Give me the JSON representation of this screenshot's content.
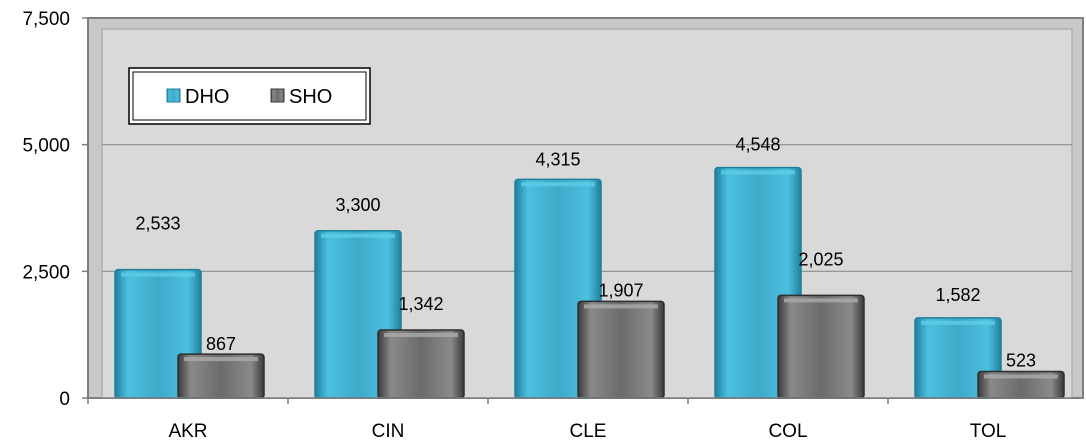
{
  "chart_data": {
    "type": "bar",
    "categories": [
      "AKR",
      "CIN",
      "CLE",
      "COL",
      "TOL"
    ],
    "series": [
      {
        "name": "DHO",
        "values": [
          2533,
          3300,
          4315,
          4548,
          1582
        ],
        "labels": [
          "2,533",
          "3,300",
          "4,315",
          "4,548",
          "1,582"
        ],
        "color": "#3fa9c9"
      },
      {
        "name": "SHO",
        "values": [
          867,
          1342,
          1907,
          2025,
          523
        ],
        "labels": [
          "867",
          "1,342",
          "1,907",
          "2,025",
          "523"
        ],
        "color": "#6b6b6b"
      }
    ],
    "ylim": [
      0,
      7500
    ],
    "yticks": [
      0,
      2500,
      5000,
      7500
    ],
    "ytick_labels": [
      "0",
      "2,500",
      "5,000",
      "7,500"
    ],
    "grid": true,
    "legend_position": "top-left",
    "plot_background": "#d9d9d9",
    "gridline_color": "#7f7f7f"
  }
}
